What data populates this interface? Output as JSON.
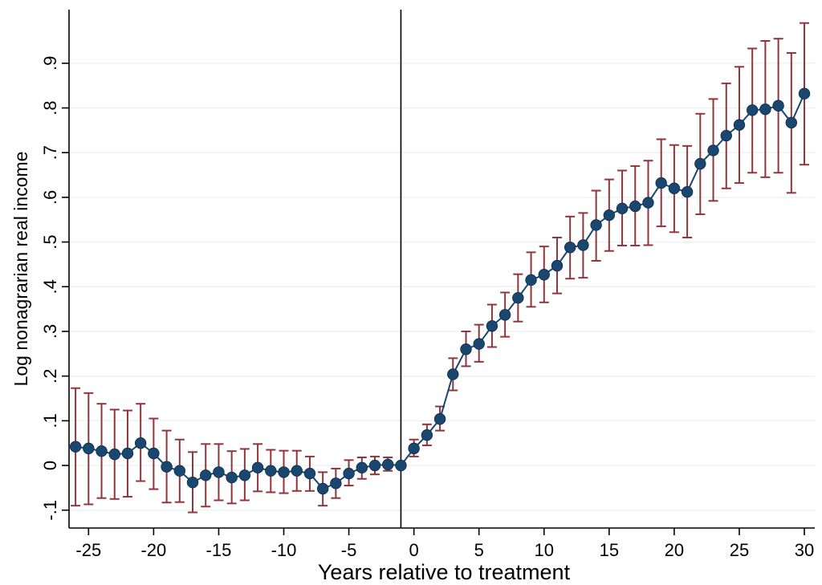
{
  "chart_data": {
    "type": "scatter",
    "title": "",
    "xlabel": "Years relative to treatment",
    "ylabel": "Log nonagrarian real income",
    "xlim": [
      -26.5,
      30.8
    ],
    "ylim": [
      -0.14,
      1.02
    ],
    "x_ticks": [
      -25,
      -20,
      -15,
      -10,
      -5,
      0,
      5,
      10,
      15,
      20,
      25,
      30
    ],
    "x_tick_labels": [
      "-25",
      "-20",
      "-15",
      "-10",
      "-5",
      "0",
      "5",
      "10",
      "15",
      "20",
      "25",
      "30"
    ],
    "y_ticks": [
      -0.1,
      0,
      0.1,
      0.2,
      0.3,
      0.4,
      0.5,
      0.6,
      0.7,
      0.8,
      0.9
    ],
    "y_tick_labels": [
      "-.1",
      "0",
      ".1",
      ".2",
      ".3",
      ".4",
      ".5",
      ".6",
      ".7",
      ".8",
      ".9"
    ],
    "grid": true,
    "reference_line_x": -1,
    "colors": {
      "point": "#1a476f",
      "line": "#1a476f",
      "error_bar": "#90353b",
      "grid": "#eaf2f3",
      "ref_line": "#000000"
    },
    "x": [
      -26,
      -25,
      -24,
      -23,
      -22,
      -21,
      -20,
      -19,
      -18,
      -17,
      -16,
      -15,
      -14,
      -13,
      -12,
      -11,
      -10,
      -9,
      -8,
      -7,
      -6,
      -5,
      -4,
      -3,
      -2,
      -1,
      0,
      1,
      2,
      3,
      4,
      5,
      6,
      7,
      8,
      9,
      10,
      11,
      12,
      13,
      14,
      15,
      16,
      17,
      18,
      19,
      20,
      21,
      22,
      23,
      24,
      25,
      26,
      27,
      28,
      29,
      30
    ],
    "estimate": [
      0.042,
      0.038,
      0.032,
      0.025,
      0.027,
      0.05,
      0.027,
      -0.003,
      -0.012,
      -0.038,
      -0.022,
      -0.015,
      -0.027,
      -0.022,
      -0.005,
      -0.012,
      -0.015,
      -0.012,
      -0.018,
      -0.052,
      -0.04,
      -0.018,
      -0.005,
      0.0,
      0.002,
      0.0,
      0.038,
      0.068,
      0.104,
      0.204,
      0.26,
      0.272,
      0.312,
      0.337,
      0.375,
      0.415,
      0.427,
      0.447,
      0.488,
      0.493,
      0.538,
      0.56,
      0.575,
      0.58,
      0.588,
      0.632,
      0.62,
      0.612,
      0.675,
      0.705,
      0.738,
      0.762,
      0.795,
      0.797,
      0.805,
      0.767,
      0.832
    ],
    "ci_low": [
      -0.09,
      -0.087,
      -0.073,
      -0.075,
      -0.07,
      -0.035,
      -0.053,
      -0.083,
      -0.082,
      -0.105,
      -0.092,
      -0.078,
      -0.085,
      -0.078,
      -0.058,
      -0.06,
      -0.062,
      -0.057,
      -0.057,
      -0.09,
      -0.073,
      -0.045,
      -0.03,
      -0.02,
      -0.012,
      0.0,
      0.02,
      0.045,
      0.078,
      0.168,
      0.222,
      0.232,
      0.265,
      0.288,
      0.322,
      0.355,
      0.365,
      0.385,
      0.418,
      0.42,
      0.458,
      0.48,
      0.492,
      0.492,
      0.493,
      0.535,
      0.522,
      0.51,
      0.562,
      0.592,
      0.62,
      0.632,
      0.655,
      0.645,
      0.655,
      0.61,
      0.673
    ],
    "ci_high": [
      0.173,
      0.162,
      0.138,
      0.125,
      0.123,
      0.138,
      0.105,
      0.078,
      0.058,
      0.03,
      0.048,
      0.048,
      0.032,
      0.037,
      0.048,
      0.035,
      0.033,
      0.033,
      0.02,
      -0.015,
      -0.007,
      0.012,
      0.018,
      0.02,
      0.018,
      0.0,
      0.058,
      0.092,
      0.132,
      0.24,
      0.3,
      0.315,
      0.36,
      0.387,
      0.428,
      0.477,
      0.49,
      0.51,
      0.557,
      0.565,
      0.615,
      0.64,
      0.66,
      0.67,
      0.682,
      0.73,
      0.717,
      0.715,
      0.787,
      0.82,
      0.855,
      0.892,
      0.933,
      0.95,
      0.955,
      0.923,
      0.99
    ]
  }
}
